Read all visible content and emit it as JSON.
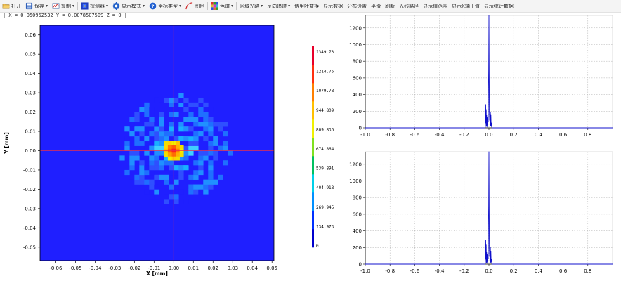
{
  "toolbar": {
    "items": [
      {
        "id": "open",
        "label": "打开",
        "icon": "folder-open-icon",
        "dropdown": false,
        "sep_after": false
      },
      {
        "id": "save",
        "label": "保存",
        "icon": "save-disk-icon",
        "dropdown": true,
        "sep_after": false
      },
      {
        "id": "copy",
        "label": "复制",
        "icon": "copy-chart-icon",
        "dropdown": true,
        "sep_after": true
      },
      {
        "id": "detector",
        "label": "探测器",
        "icon": "detector-grid-icon",
        "dropdown": true,
        "sep_after": false
      },
      {
        "id": "display_mode",
        "label": "显示模式",
        "icon": "gear-icon",
        "dropdown": true,
        "sep_after": false
      },
      {
        "id": "coord_type",
        "label": "坐标类型",
        "icon": "help-circle-icon",
        "dropdown": true,
        "sep_after": false
      },
      {
        "id": "legend",
        "label": "图例",
        "icon": "curve-icon",
        "dropdown": false,
        "sep_after": true
      },
      {
        "id": "colormap",
        "label": "色谱",
        "icon": "colormap-icon",
        "dropdown": true,
        "sep_after": true
      },
      {
        "id": "region_ray",
        "label": "区域光路",
        "icon": "",
        "dropdown": true,
        "sep_after": false
      },
      {
        "id": "reverse_trace",
        "label": "反向追迹",
        "icon": "",
        "dropdown": true,
        "sep_after": false
      },
      {
        "id": "fourier",
        "label": "傅里叶变换",
        "icon": "",
        "dropdown": false,
        "sep_after": false
      },
      {
        "id": "show_data",
        "label": "显示数据",
        "icon": "",
        "dropdown": false,
        "sep_after": false
      },
      {
        "id": "dist_settings",
        "label": "分布设置",
        "icon": "",
        "dropdown": false,
        "sep_after": false
      },
      {
        "id": "smooth",
        "label": "平滑",
        "icon": "",
        "dropdown": false,
        "sep_after": false
      },
      {
        "id": "refresh",
        "label": "刷新",
        "icon": "",
        "dropdown": false,
        "sep_after": false
      },
      {
        "id": "ray_path",
        "label": "光线路径",
        "icon": "",
        "dropdown": false,
        "sep_after": false
      },
      {
        "id": "value_range",
        "label": "显示值范围",
        "icon": "",
        "dropdown": false,
        "sep_after": false
      },
      {
        "id": "x_positive",
        "label": "显示X轴正值",
        "icon": "",
        "dropdown": false,
        "sep_after": false
      },
      {
        "id": "statistics",
        "label": "显示统计数据",
        "icon": "",
        "dropdown": false,
        "sep_after": false
      }
    ]
  },
  "coordinates_readout": "| X = 0.050952532  Y = 0.0078507509  Z = 0 |",
  "colors": {
    "background_blue": "#1f1fff",
    "crosshair": "#e8304a",
    "profile_line": "#1010cc",
    "axis": "#000000",
    "grid": "#b0b0b0"
  },
  "chart_data": [
    {
      "type": "heatmap",
      "x_label": "X [mm]",
      "y_label": "Y [mm]",
      "xlim": [
        -0.068,
        0.051
      ],
      "ylim": [
        -0.057,
        0.065
      ],
      "x_ticks": [
        "-0.06",
        "-0.05",
        "-0.04",
        "-0.03",
        "-0.02",
        "-0.01",
        "0.00",
        "0.01",
        "0.02",
        "0.03",
        "0.04",
        "0.05"
      ],
      "y_ticks": [
        "0.06",
        "0.05",
        "0.04",
        "0.03",
        "0.02",
        "0.01",
        "0.00",
        "-0.01",
        "-0.02",
        "-0.03",
        "-0.04",
        "-0.05"
      ],
      "cursor": {
        "x": 0.0,
        "y": 0.0
      },
      "peak_value": 1349.73,
      "colorbar": {
        "labels": [
          "1349.73",
          "1214.75",
          "1079.78",
          "944.809",
          "809.836",
          "674.864",
          "539.891",
          "404.918",
          "269.945",
          "134.973",
          "0"
        ],
        "colors": [
          "#0000cd",
          "#0030ff",
          "#0090ff",
          "#00d0e8",
          "#00c060",
          "#80e020",
          "#f0f000",
          "#ffc000",
          "#ff8000",
          "#ff3010",
          "#e8002a"
        ]
      }
    },
    {
      "type": "line",
      "xlim": [
        -1.0,
        1.0
      ],
      "ylim": [
        0,
        1350
      ],
      "x_ticks": [
        "-1.0",
        "-0.8",
        "-0.6",
        "-0.4",
        "-0.2",
        "0.0",
        "0.2",
        "0.4",
        "0.6",
        "0.8"
      ],
      "y_ticks": [
        "0",
        "200",
        "400",
        "600",
        "800",
        "1000",
        "1200"
      ],
      "grid": true,
      "series": [
        {
          "x": [
            -1.0,
            -0.03,
            -0.028,
            -0.026,
            -0.024,
            -0.022,
            -0.02,
            -0.018,
            -0.016,
            -0.014,
            -0.012,
            -0.01,
            -0.008,
            -0.006,
            -0.004,
            -0.002,
            0.0,
            0.002,
            0.004,
            0.006,
            0.008,
            0.01,
            0.012,
            0.014,
            0.016,
            0.018,
            0.02,
            0.022,
            0.024,
            0.026,
            0.028,
            1.0
          ],
          "y": [
            0,
            0,
            30,
            280,
            60,
            220,
            20,
            150,
            10,
            60,
            130,
            30,
            210,
            70,
            430,
            690,
            1350,
            640,
            180,
            90,
            220,
            40,
            190,
            20,
            160,
            30,
            60,
            10,
            25,
            0,
            0,
            0
          ]
        }
      ]
    },
    {
      "type": "line",
      "xlim": [
        -1.0,
        1.0
      ],
      "ylim": [
        0,
        1350
      ],
      "x_ticks": [
        "-1.0",
        "-0.8",
        "-0.6",
        "-0.4",
        "-0.2",
        "0.0",
        "0.2",
        "0.4",
        "0.6",
        "0.8"
      ],
      "y_ticks": [
        "0",
        "200",
        "400",
        "600",
        "800",
        "1000",
        "1200"
      ],
      "grid": true,
      "series": [
        {
          "x": [
            -1.0,
            -0.03,
            -0.028,
            -0.026,
            -0.024,
            -0.022,
            -0.02,
            -0.018,
            -0.016,
            -0.014,
            -0.012,
            -0.01,
            -0.008,
            -0.006,
            -0.004,
            -0.002,
            0.0,
            0.002,
            0.004,
            0.006,
            0.008,
            0.01,
            0.012,
            0.014,
            0.016,
            0.018,
            0.02,
            0.022,
            0.024,
            0.026,
            0.028,
            1.0
          ],
          "y": [
            0,
            0,
            30,
            290,
            60,
            230,
            20,
            140,
            10,
            60,
            120,
            30,
            200,
            70,
            440,
            700,
            1350,
            650,
            170,
            90,
            220,
            40,
            200,
            20,
            150,
            30,
            60,
            10,
            25,
            0,
            0,
            0
          ]
        }
      ]
    }
  ]
}
